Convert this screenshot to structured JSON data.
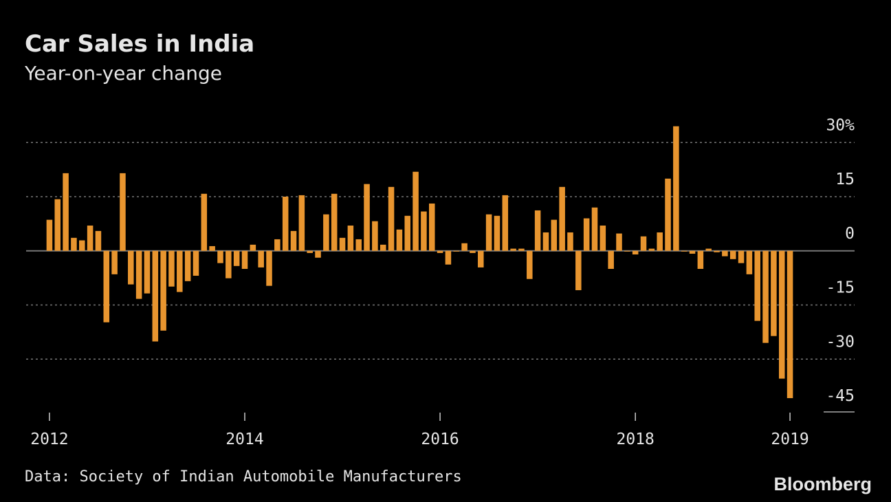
{
  "chart_data": {
    "type": "bar",
    "title": "Car Sales in India",
    "subtitle": "Year-on-year change",
    "categories": [
      "2012",
      null,
      null,
      null,
      null,
      null,
      null,
      null,
      null,
      null,
      null,
      null,
      null,
      null,
      null,
      null,
      null,
      null,
      null,
      null,
      null,
      null,
      null,
      null,
      "2014",
      null,
      null,
      null,
      null,
      null,
      null,
      null,
      null,
      null,
      null,
      null,
      null,
      null,
      null,
      null,
      null,
      null,
      null,
      null,
      null,
      null,
      null,
      null,
      "2016",
      null,
      null,
      null,
      null,
      null,
      null,
      null,
      null,
      null,
      null,
      null,
      null,
      null,
      null,
      null,
      null,
      null,
      null,
      null,
      null,
      null,
      null,
      null,
      "2018",
      null,
      null,
      null,
      null,
      null,
      null,
      null,
      null,
      null,
      null,
      null,
      null,
      null,
      null,
      null,
      null,
      null,
      null,
      "2019"
    ],
    "values": [
      8.6,
      14.3,
      21.5,
      3.6,
      2.9,
      7.0,
      5.5,
      -19.8,
      -6.5,
      21.5,
      -9.3,
      -13.3,
      -11.8,
      -25.1,
      -22.1,
      -9.9,
      -11.4,
      -8.4,
      -6.9,
      15.8,
      1.3,
      -3.4,
      -7.6,
      -4.2,
      -5.0,
      1.7,
      -4.6,
      -9.7,
      3.2,
      15.0,
      5.5,
      15.4,
      -0.6,
      -1.9,
      10.1,
      15.8,
      3.6,
      7.0,
      3.2,
      18.5,
      8.2,
      1.7,
      17.7,
      5.9,
      9.7,
      21.9,
      10.9,
      13.1,
      -0.6,
      -3.8,
      -0.2,
      2.1,
      -0.6,
      -4.6,
      10.1,
      9.7,
      15.4,
      0.6,
      0.6,
      -7.8,
      11.2,
      5.1,
      8.6,
      17.7,
      5.1,
      -10.9,
      9.0,
      12.0,
      7.0,
      -5.0,
      4.8,
      -0.2,
      -1.0,
      4.0,
      0.6,
      5.1,
      20.0,
      34.5,
      -0.2,
      -0.8,
      -5.0,
      0.6,
      -0.4,
      -1.5,
      -2.3,
      -3.4,
      -6.5,
      -19.4,
      -25.5,
      -23.6,
      -35.4,
      -40.8
    ],
    "color": "#e8952f",
    "ylim": [
      -45,
      35
    ],
    "yticks": [
      {
        "value": 30,
        "label": "30%"
      },
      15,
      0,
      -15,
      -30,
      -45
    ],
    "grid": true,
    "source": "Data: Society of Indian Automobile Manufacturers",
    "brand": "Bloomberg"
  }
}
